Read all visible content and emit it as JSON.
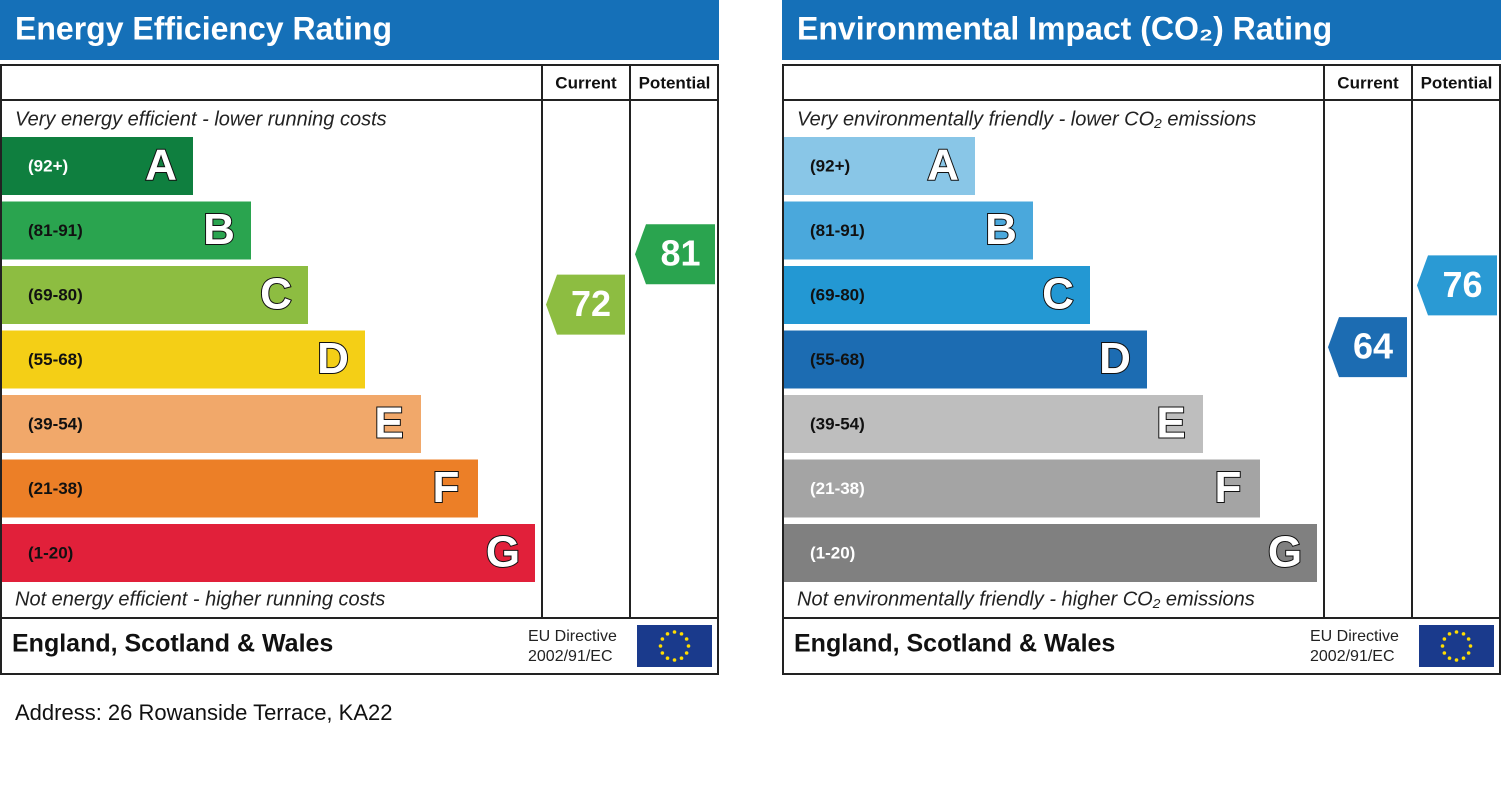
{
  "chart_data": [
    {
      "type": "epc",
      "title": "Energy Efficiency Rating",
      "header": {
        "current": "Current",
        "potential": "Potential"
      },
      "top_text": "Very energy efficient - lower running costs",
      "bottom_text": "Not energy efficient - higher running costs",
      "bands": [
        {
          "letter": "A",
          "range": "(92+)",
          "color": "#0f7f3f",
          "text_color": "#ffffff"
        },
        {
          "letter": "B",
          "range": "(81-91)",
          "color": "#2aa44f",
          "text_color": "#111111"
        },
        {
          "letter": "C",
          "range": "(69-80)",
          "color": "#8dbd41",
          "text_color": "#111111"
        },
        {
          "letter": "D",
          "range": "(55-68)",
          "color": "#f4cf16",
          "text_color": "#111111"
        },
        {
          "letter": "E",
          "range": "(39-54)",
          "color": "#f1a86a",
          "text_color": "#111111"
        },
        {
          "letter": "F",
          "range": "(21-38)",
          "color": "#ec7f27",
          "text_color": "#111111"
        },
        {
          "letter": "G",
          "range": "(1-20)",
          "color": "#e1203a",
          "text_color": "#111111"
        }
      ],
      "current": 72,
      "current_color": "#8dbd41",
      "potential": 81,
      "potential_color": "#2aa44f",
      "footer": {
        "region": "England, Scotland & Wales",
        "directive_line1": "EU Directive",
        "directive_line2": "2002/91/EC"
      }
    },
    {
      "type": "epc",
      "title": "Environmental Impact (CO₂) Rating",
      "header": {
        "current": "Current",
        "potential": "Potential"
      },
      "top_text": "Very environmentally friendly - lower CO₂ emissions",
      "bottom_text": "Not environmentally friendly - higher CO₂ emissions",
      "bands": [
        {
          "letter": "A",
          "range": "(92+)",
          "color": "#89c6e7",
          "text_color": "#111111"
        },
        {
          "letter": "B",
          "range": "(81-91)",
          "color": "#4aa8dc",
          "text_color": "#111111"
        },
        {
          "letter": "C",
          "range": "(69-80)",
          "color": "#2398d3",
          "text_color": "#111111"
        },
        {
          "letter": "D",
          "range": "(55-68)",
          "color": "#1c6cb2",
          "text_color": "#111111"
        },
        {
          "letter": "E",
          "range": "(39-54)",
          "color": "#bebebe",
          "text_color": "#111111"
        },
        {
          "letter": "F",
          "range": "(21-38)",
          "color": "#a4a4a4",
          "text_color": "#ffffff"
        },
        {
          "letter": "G",
          "range": "(1-20)",
          "color": "#808080",
          "text_color": "#ffffff"
        }
      ],
      "current": 64,
      "current_color": "#1c6cb2",
      "potential": 76,
      "potential_color": "#2a9ad4",
      "footer": {
        "region": "England, Scotland & Wales",
        "directive_line1": "EU Directive",
        "directive_line2": "2002/91/EC"
      }
    }
  ],
  "address": "Address: 26 Rowanside Terrace, KA22"
}
